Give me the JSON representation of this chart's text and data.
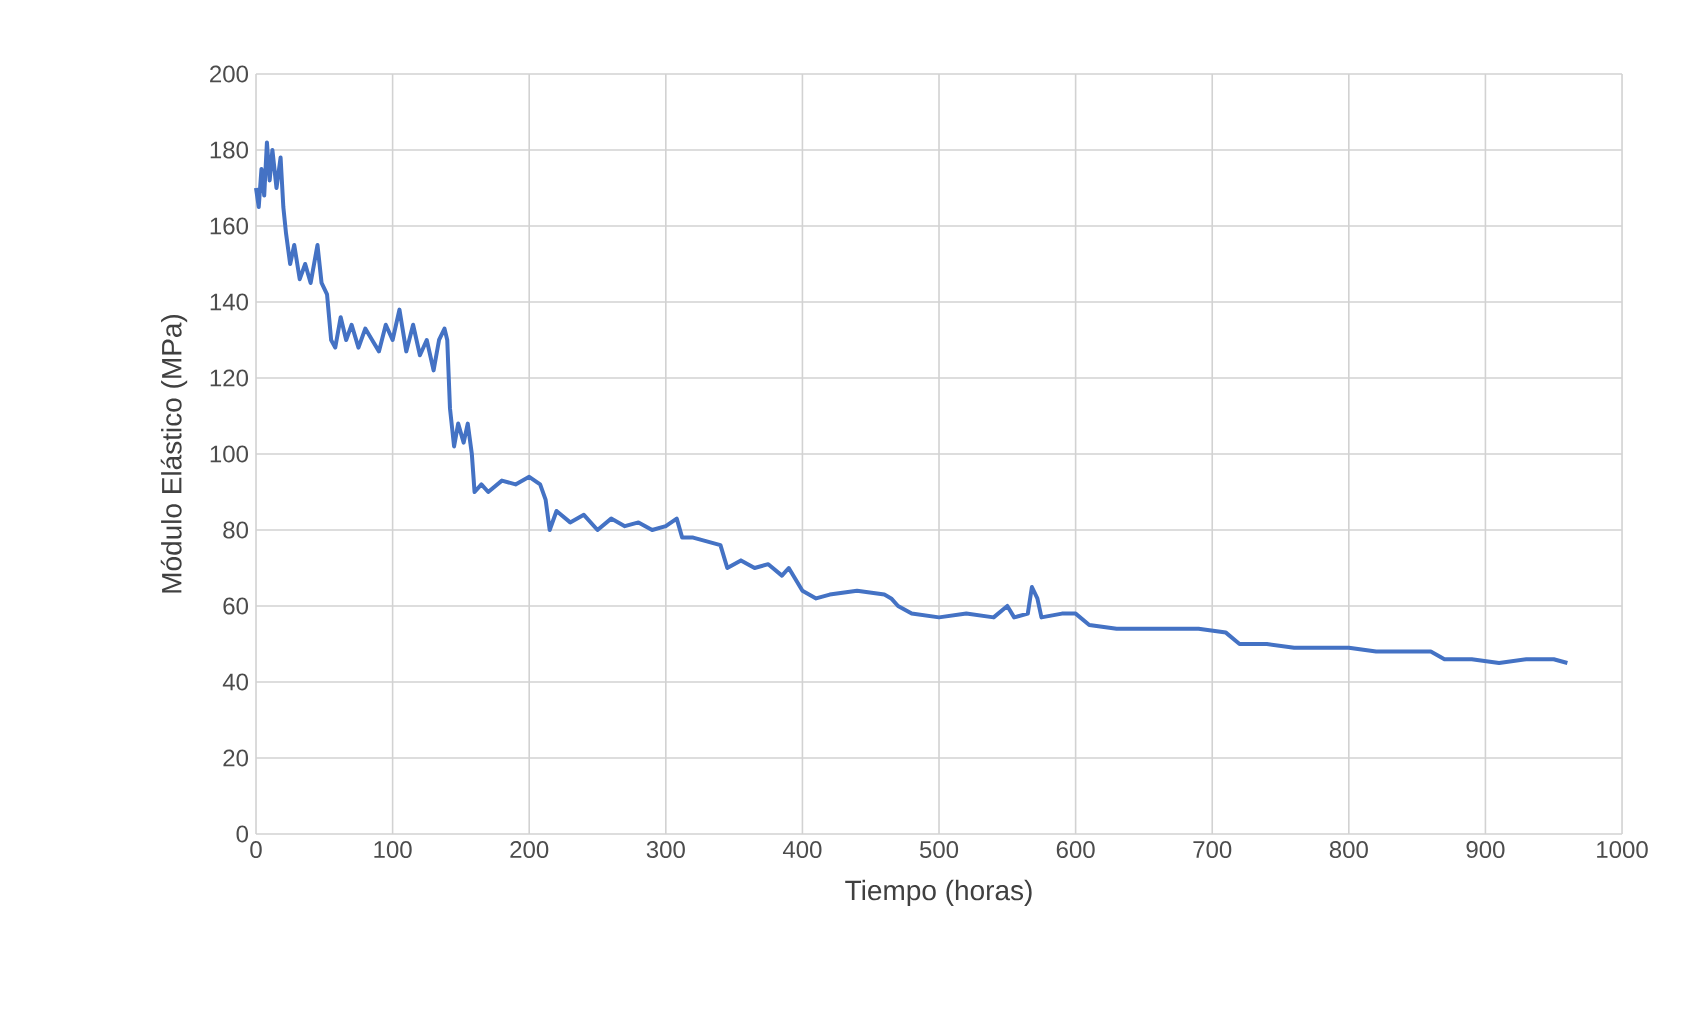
{
  "chart_data": {
    "type": "line",
    "xlabel": "Tiempo (horas)",
    "ylabel": "Módulo Elástico (MPa)",
    "xlim": [
      0,
      1000
    ],
    "ylim": [
      0,
      200
    ],
    "xticks": [
      0,
      100,
      200,
      300,
      400,
      500,
      600,
      700,
      800,
      900,
      1000
    ],
    "yticks": [
      0,
      20,
      40,
      60,
      80,
      100,
      120,
      140,
      160,
      180,
      200
    ],
    "grid": true,
    "marker": "none",
    "line_style": "solid",
    "series": [
      {
        "color": "#4472c4",
        "x": [
          0,
          2,
          4,
          6,
          8,
          10,
          12,
          15,
          18,
          20,
          22,
          25,
          28,
          32,
          36,
          40,
          45,
          48,
          52,
          55,
          58,
          62,
          66,
          70,
          75,
          80,
          85,
          90,
          95,
          100,
          105,
          110,
          115,
          120,
          125,
          130,
          134,
          138,
          140,
          142,
          145,
          148,
          152,
          155,
          158,
          160,
          165,
          170,
          180,
          190,
          200,
          208,
          212,
          215,
          220,
          230,
          240,
          250,
          260,
          270,
          280,
          290,
          300,
          308,
          312,
          320,
          330,
          340,
          345,
          355,
          365,
          375,
          385,
          390,
          400,
          410,
          420,
          440,
          460,
          465,
          470,
          480,
          500,
          520,
          540,
          550,
          555,
          565,
          568,
          572,
          575,
          590,
          600,
          610,
          630,
          660,
          690,
          710,
          720,
          740,
          760,
          780,
          800,
          820,
          840,
          860,
          870,
          890,
          910,
          930,
          950,
          960
        ],
        "values": [
          170,
          165,
          175,
          168,
          182,
          172,
          180,
          170,
          178,
          165,
          158,
          150,
          155,
          146,
          150,
          145,
          155,
          145,
          142,
          130,
          128,
          136,
          130,
          134,
          128,
          133,
          130,
          127,
          134,
          130,
          138,
          127,
          134,
          126,
          130,
          122,
          130,
          133,
          130,
          112,
          102,
          108,
          103,
          108,
          100,
          90,
          92,
          90,
          93,
          92,
          94,
          92,
          88,
          80,
          85,
          82,
          84,
          80,
          83,
          81,
          82,
          80,
          81,
          83,
          78,
          78,
          77,
          76,
          70,
          72,
          70,
          71,
          68,
          70,
          64,
          62,
          63,
          64,
          63,
          62,
          60,
          58,
          57,
          58,
          57,
          60,
          57,
          58,
          65,
          62,
          57,
          58,
          58,
          55,
          54,
          54,
          54,
          53,
          50,
          50,
          49,
          49,
          49,
          48,
          48,
          48,
          46,
          46,
          45,
          46,
          46,
          45
        ]
      }
    ]
  }
}
